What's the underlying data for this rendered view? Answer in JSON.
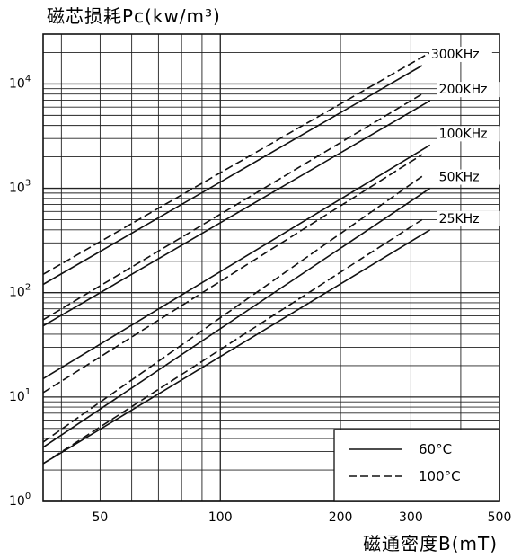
{
  "chart_data": {
    "type": "line",
    "title": "磁芯损耗Pc(kw/m³)",
    "xlabel": "磁通密度B(mT)",
    "ylabel": "",
    "x_scale": "log",
    "y_scale": "log",
    "xlim": [
      36,
      500
    ],
    "ylim": [
      1,
      30000
    ],
    "grid": true,
    "x_ticks": [
      {
        "v": 50,
        "label": "50"
      },
      {
        "v": 100,
        "label": "100"
      },
      {
        "v": 200,
        "label": "200"
      },
      {
        "v": 300,
        "label": "300"
      },
      {
        "v": 500,
        "label": "500"
      }
    ],
    "y_ticks": [
      {
        "v": 1,
        "base": "10",
        "exp": "0"
      },
      {
        "v": 10,
        "base": "10",
        "exp": "1"
      },
      {
        "v": 100,
        "base": "10",
        "exp": "2"
      },
      {
        "v": 1000,
        "base": "10",
        "exp": "3"
      },
      {
        "v": 10000,
        "base": "10",
        "exp": "4"
      }
    ],
    "legend": {
      "position": "bottom-right",
      "entries": [
        {
          "style": "solid",
          "label": "60°C"
        },
        {
          "style": "dashed",
          "label": "100°C"
        }
      ]
    },
    "freq_labels": [
      {
        "text": "300KHz",
        "series": "300-60"
      },
      {
        "text": "200KHz",
        "series": "200-60"
      },
      {
        "text": "100KHz",
        "series": "100-60"
      },
      {
        "text": "50KHz",
        "series": "50-60"
      },
      {
        "text": "25KHz",
        "series": "25-60"
      }
    ],
    "series": [
      {
        "id": "300-60",
        "style": "solid",
        "x": [
          36,
          320
        ],
        "y": [
          120,
          15000
        ]
      },
      {
        "id": "300-100",
        "style": "dashed",
        "x": [
          36,
          335
        ],
        "y": [
          150,
          20000
        ]
      },
      {
        "id": "200-60",
        "style": "solid",
        "x": [
          36,
          335
        ],
        "y": [
          48,
          6900
        ]
      },
      {
        "id": "200-100",
        "style": "dashed",
        "x": [
          36,
          320
        ],
        "y": [
          55,
          8000
        ]
      },
      {
        "id": "100-60",
        "style": "solid",
        "x": [
          36,
          335
        ],
        "y": [
          15,
          2600
        ]
      },
      {
        "id": "100-100",
        "style": "dashed",
        "x": [
          36,
          320
        ],
        "y": [
          11,
          2100
        ]
      },
      {
        "id": "50-60",
        "style": "solid",
        "x": [
          36,
          335
        ],
        "y": [
          3.3,
          1000
        ]
      },
      {
        "id": "50-100",
        "style": "dashed",
        "x": [
          36,
          320
        ],
        "y": [
          3.7,
          1300
        ]
      },
      {
        "id": "25-60",
        "style": "solid",
        "x": [
          36,
          335
        ],
        "y": [
          2.3,
          400
        ]
      },
      {
        "id": "25-100",
        "style": "dashed",
        "x": [
          36,
          320
        ],
        "y": [
          2.3,
          500
        ]
      }
    ]
  }
}
